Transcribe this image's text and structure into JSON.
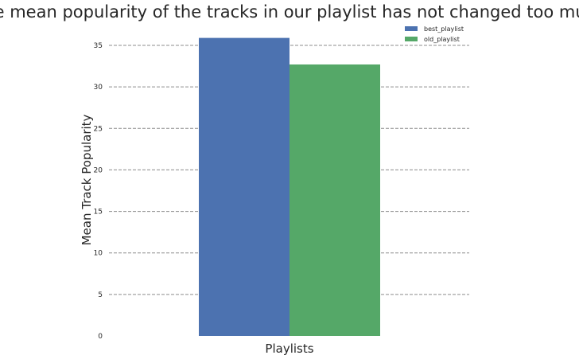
{
  "chart_data": {
    "type": "bar",
    "title": "The mean popularity of the tracks in our playlist has not changed too much",
    "xlabel": "Playlists",
    "ylabel": "Mean Track Popularity",
    "categories": [
      ""
    ],
    "series": [
      {
        "name": "best_playlist",
        "values": [
          35.9
        ],
        "color": "#4c72b0"
      },
      {
        "name": "old_playlist",
        "values": [
          32.7
        ],
        "color": "#55a868"
      }
    ],
    "ylim": [
      0,
      36
    ],
    "yticks": [
      0,
      5,
      10,
      15,
      20,
      25,
      30,
      35
    ],
    "grid": true,
    "grid_style": "dashed",
    "legend_position": "top-right"
  }
}
